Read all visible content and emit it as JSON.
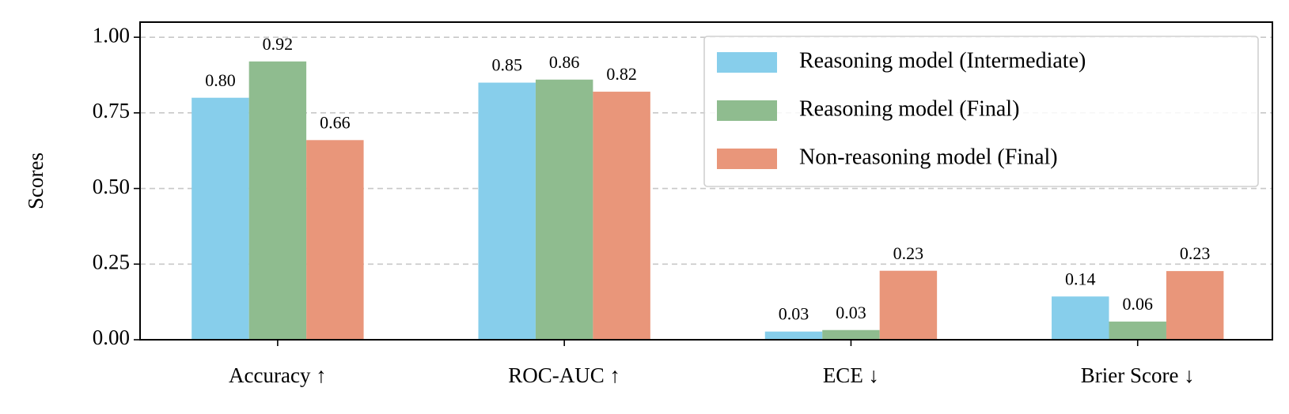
{
  "chart_data": {
    "type": "bar",
    "y_label": "Scores",
    "categories": [
      "Accuracy ↑",
      "ROC-AUC ↑",
      "ECE ↓",
      "Brier Score ↓"
    ],
    "series": [
      {
        "name": "Reasoning model (Intermediate)",
        "color": "#87ceeb",
        "values": [
          0.8,
          0.85,
          0.027,
          0.143
        ],
        "value_labels": [
          "0.80",
          "0.85",
          "0.03",
          "0.14"
        ]
      },
      {
        "name": "Reasoning model (Final)",
        "color": "#8fbc8f",
        "values": [
          0.92,
          0.86,
          0.032,
          0.06
        ],
        "value_labels": [
          "0.92",
          "0.86",
          "0.03",
          "0.06"
        ]
      },
      {
        "name": "Non-reasoning model (Final)",
        "color": "#e9967a",
        "values": [
          0.66,
          0.82,
          0.228,
          0.227
        ],
        "value_labels": [
          "0.66",
          "0.82",
          "0.23",
          "0.23"
        ]
      }
    ],
    "ylim": [
      0,
      1.05
    ],
    "yticks": [
      {
        "value": 0,
        "label": "0.00"
      },
      {
        "value": 0.25,
        "label": "0.25"
      },
      {
        "value": 0.5,
        "label": "0.50"
      },
      {
        "value": 0.75,
        "label": "0.75"
      },
      {
        "value": 1,
        "label": "1.00"
      }
    ],
    "grid": true,
    "legend": "upper right"
  }
}
